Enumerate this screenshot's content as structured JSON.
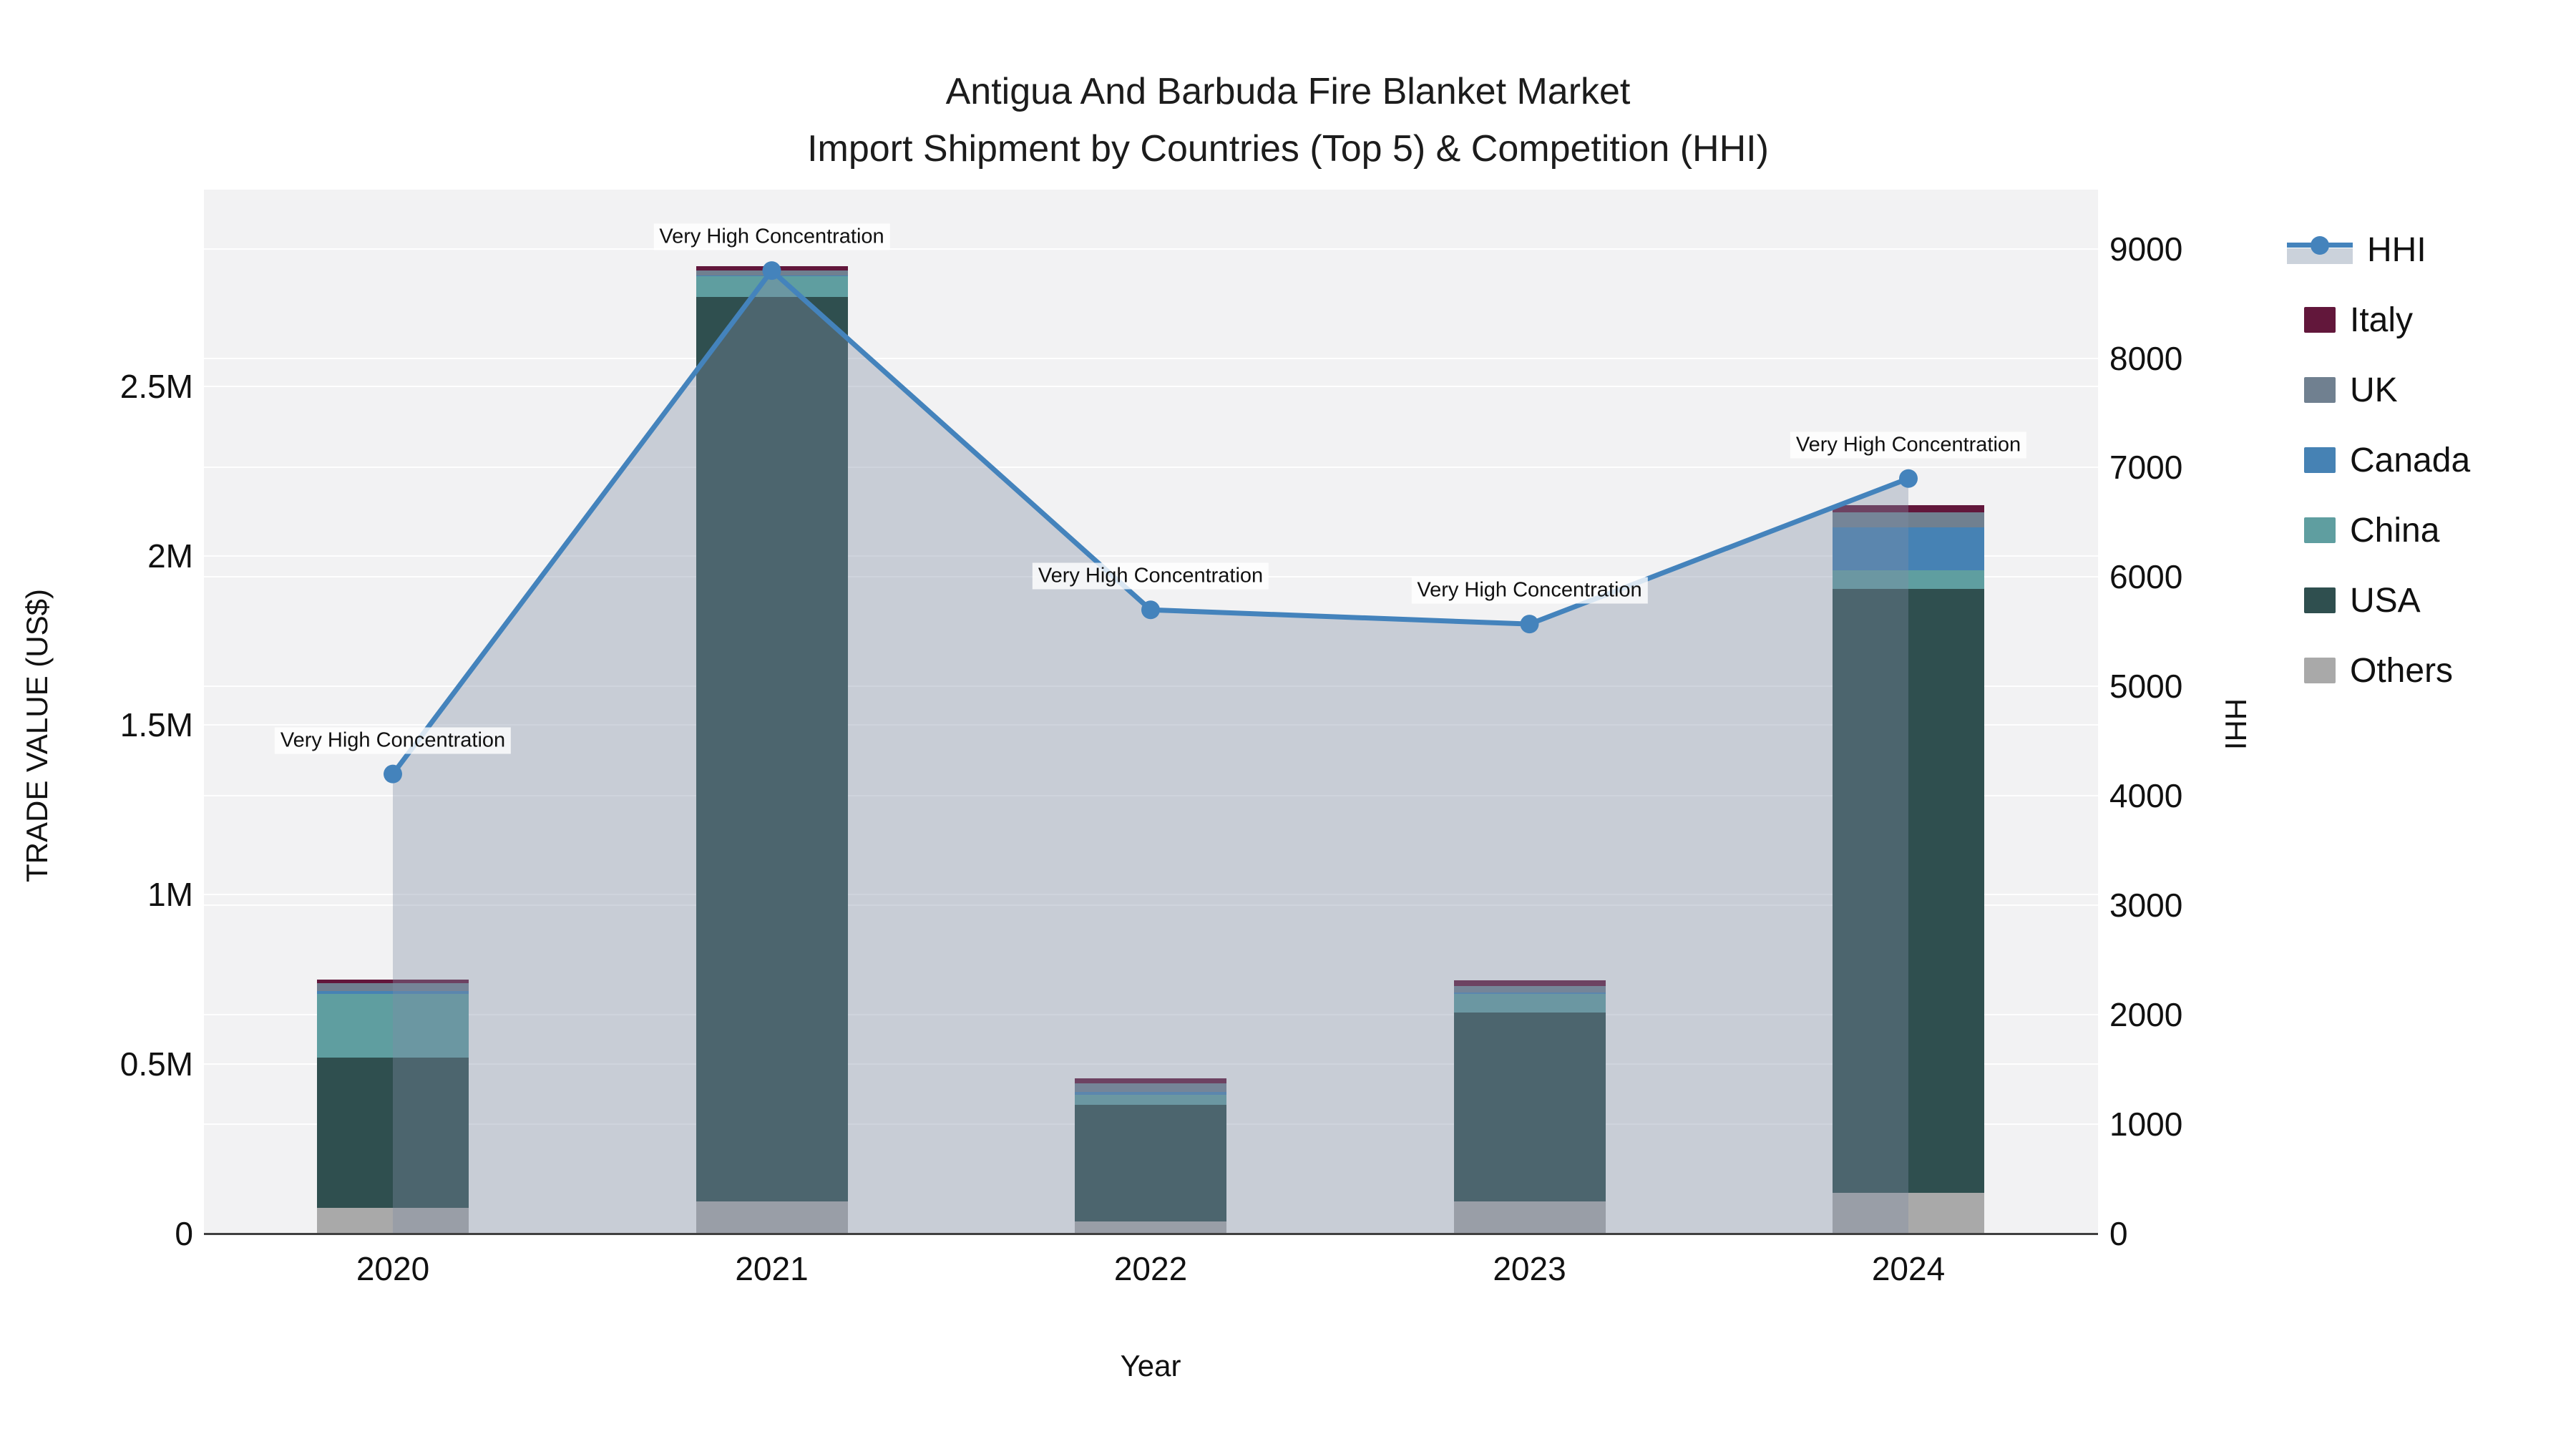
{
  "title": {
    "line1": "Antigua And Barbuda Fire Blanket Market",
    "line2": "Import Shipment by Countries (Top 5) & Competition (HHI)"
  },
  "axes": {
    "x": {
      "title": "Year",
      "categories": [
        "2020",
        "2021",
        "2022",
        "2023",
        "2024"
      ]
    },
    "y_left": {
      "title": "TRADE VALUE (US$)",
      "tick_labels": [
        "0",
        "0.5M",
        "1M",
        "1.5M",
        "2M",
        "2.5M"
      ],
      "tick_values": [
        0,
        0.5,
        1,
        1.5,
        2,
        2.5
      ]
    },
    "y_right": {
      "title": "HHI",
      "tick_labels": [
        "0",
        "1000",
        "2000",
        "3000",
        "4000",
        "5000",
        "6000",
        "7000",
        "8000",
        "9000"
      ],
      "tick_values": [
        0,
        1000,
        2000,
        3000,
        4000,
        5000,
        6000,
        7000,
        8000,
        9000
      ]
    }
  },
  "legend": {
    "items": [
      {
        "label": "HHI",
        "type": "line",
        "color": "#4483bc",
        "area_color": "#cbd2db"
      },
      {
        "label": "Italy",
        "type": "box",
        "color": "#62173b"
      },
      {
        "label": "UK",
        "type": "box",
        "color": "#708090"
      },
      {
        "label": "Canada",
        "type": "box",
        "color": "#4682b4"
      },
      {
        "label": "China",
        "type": "box",
        "color": "#5f9ea0"
      },
      {
        "label": "USA",
        "type": "box",
        "color": "#2f4f4f"
      },
      {
        "label": "Others",
        "type": "box",
        "color": "#a9a9a9"
      }
    ]
  },
  "chart_data": {
    "type": "combo-stacked-bar-line",
    "title": "Antigua And Barbuda Fire Blanket Market — Import Shipment by Countries (Top 5) & Competition (HHI)",
    "xlabel": "Year",
    "ylabel_left": "TRADE VALUE (US$)",
    "ylabel_right": "HHI",
    "categories": [
      "2020",
      "2021",
      "2022",
      "2023",
      "2024"
    ],
    "bar_units": "millions US$",
    "bar_stack_order": "bottom to top",
    "bar_series": [
      {
        "name": "Others",
        "color": "#a9a9a9",
        "values": [
          0.077,
          0.094,
          0.036,
          0.095,
          0.12
        ]
      },
      {
        "name": "USA",
        "color": "#2f4f4f",
        "values": [
          0.443,
          2.67,
          0.343,
          0.557,
          1.783
        ]
      },
      {
        "name": "China",
        "color": "#5f9ea0",
        "values": [
          0.188,
          0.06,
          0.03,
          0.055,
          0.053
        ]
      },
      {
        "name": "Canada",
        "color": "#4682b4",
        "values": [
          0.007,
          0.002,
          0.01,
          0.005,
          0.127
        ]
      },
      {
        "name": "UK",
        "color": "#708090",
        "values": [
          0.024,
          0.015,
          0.025,
          0.019,
          0.046
        ]
      },
      {
        "name": "Italy",
        "color": "#62173b",
        "values": [
          0.01,
          0.013,
          0.015,
          0.017,
          0.021
        ]
      }
    ],
    "bar_totals": [
      0.749,
      2.854,
      0.459,
      0.748,
      2.15
    ],
    "line_series": {
      "name": "HHI",
      "axis": "right",
      "color": "#4483bc",
      "fill": "rgba(127,142,166,0.37)",
      "values": [
        4200,
        8800,
        5700,
        5570,
        6900
      ]
    },
    "annotations": [
      {
        "x": "2020",
        "text": "Very High Concentration"
      },
      {
        "x": "2021",
        "text": "Very High Concentration"
      },
      {
        "x": "2022",
        "text": "Very High Concentration"
      },
      {
        "x": "2023",
        "text": "Very High Concentration"
      },
      {
        "x": "2024",
        "text": "Very High Concentration"
      }
    ],
    "ylim_left": [
      0,
      3.08
    ],
    "ylim_right": [
      0,
      9540
    ],
    "grid": "faint white horizontal lines for both axes",
    "legend_position": "right"
  }
}
